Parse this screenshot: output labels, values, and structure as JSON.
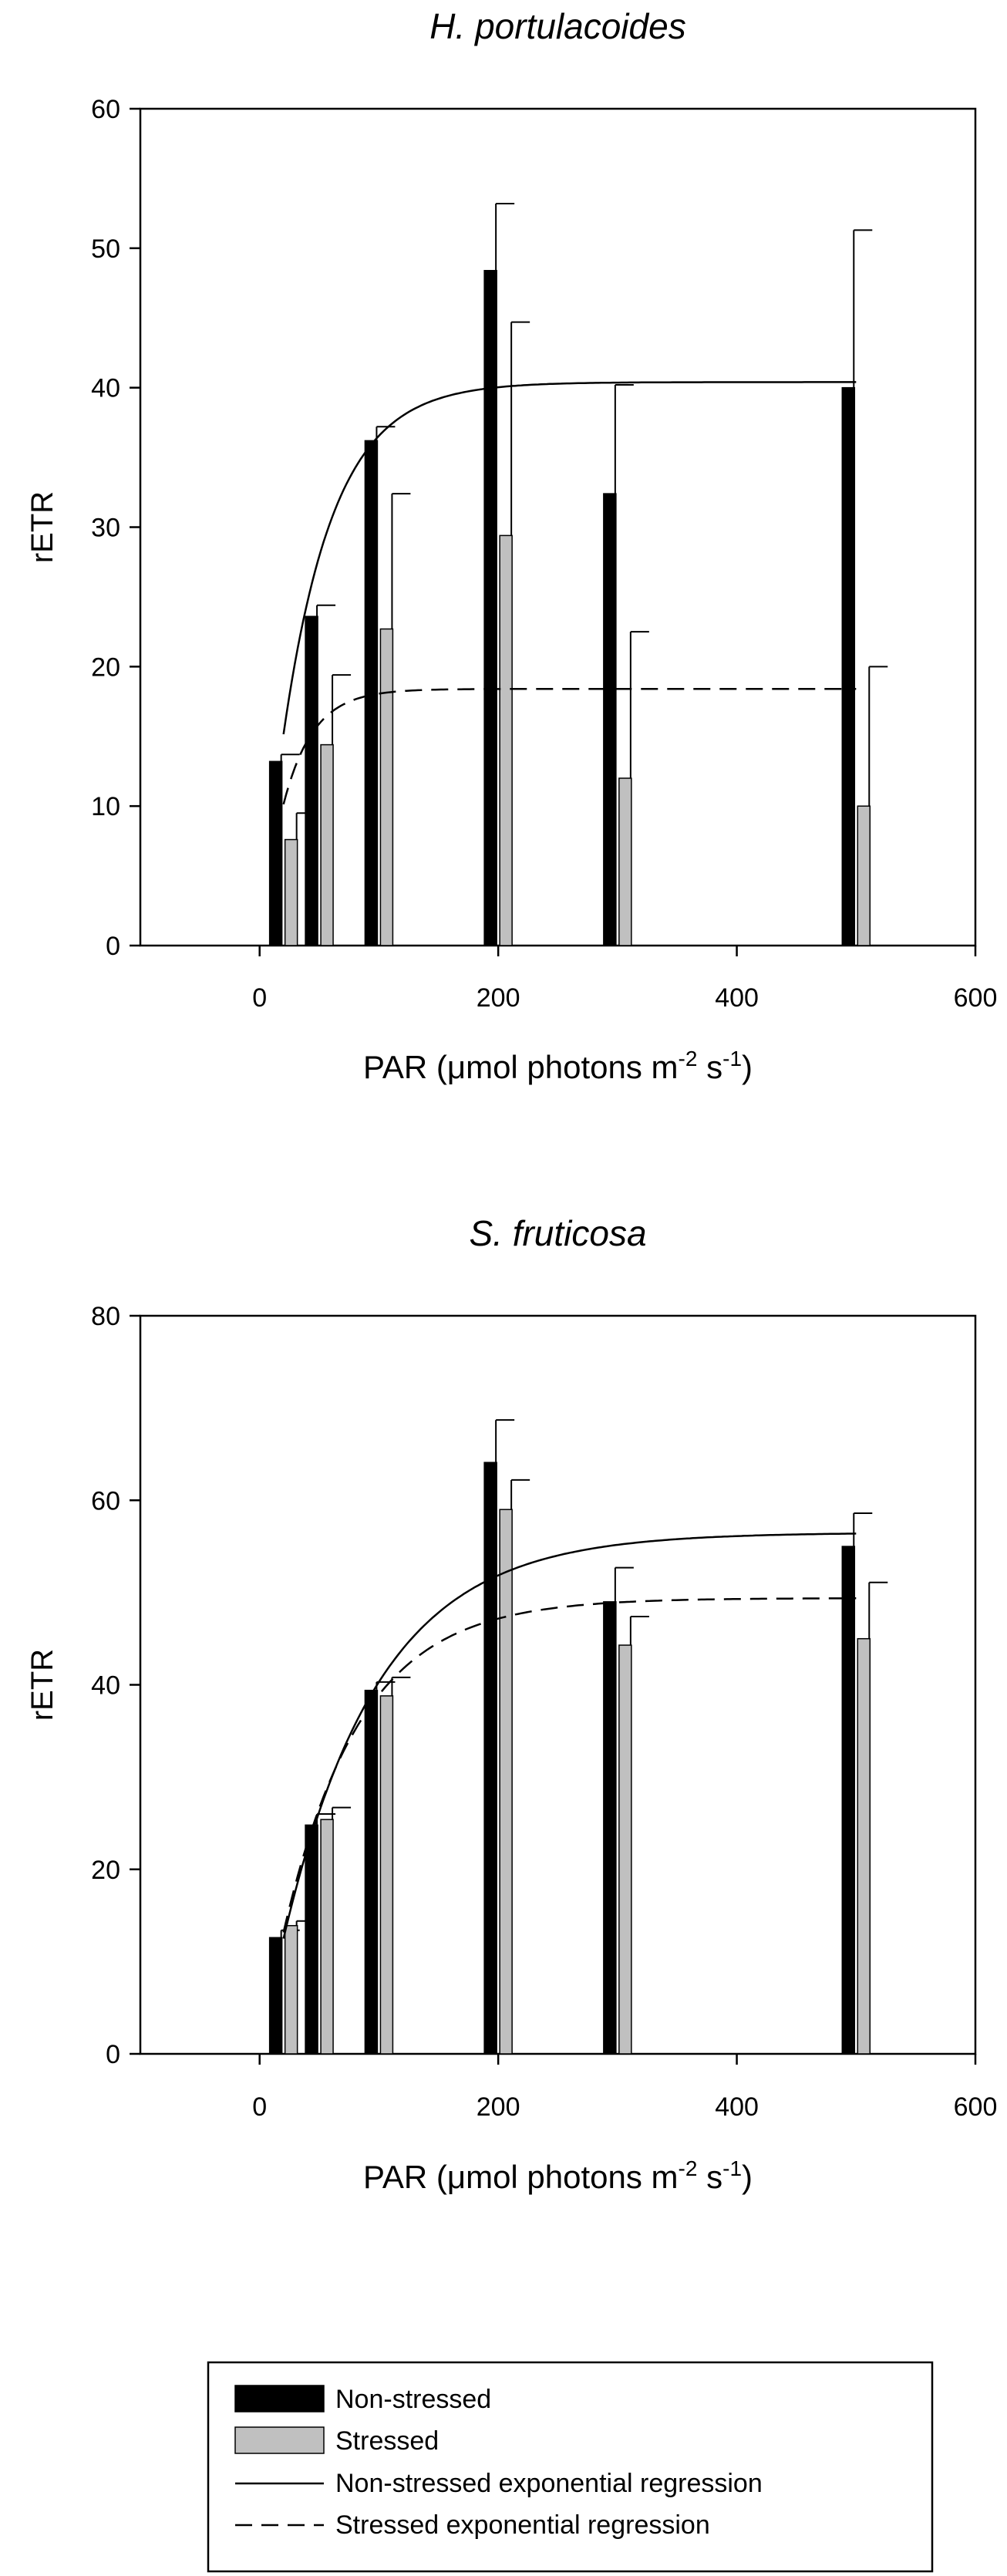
{
  "chart_data": [
    {
      "type": "bar",
      "title": "H. portulacoides",
      "xlabel": "PAR (μmol photons m-2 s-1)",
      "xlabel_parts": {
        "main": "PAR (",
        "mu": "μ",
        "mid": "mol photons m",
        "sup1": "-2",
        "mid2": " s",
        "sup2": "-1",
        "end": ")"
      },
      "ylabel": "rETR",
      "xlim": [
        -100,
        600
      ],
      "ylim": [
        0,
        60
      ],
      "xticks": [
        0,
        200,
        400,
        600
      ],
      "yticks": [
        0,
        10,
        20,
        30,
        40,
        50,
        60
      ],
      "x": [
        20,
        50,
        100,
        200,
        300,
        500
      ],
      "series": [
        {
          "name": "Non-stressed",
          "values": [
            13.2,
            23.6,
            36.2,
            48.4,
            32.4,
            40.0
          ],
          "errors": [
            0.5,
            0.8,
            1.0,
            4.8,
            7.8,
            11.3
          ],
          "color": "#000000"
        },
        {
          "name": "Stressed",
          "values": [
            7.6,
            14.4,
            22.7,
            29.4,
            12.0,
            10.0
          ],
          "errors": [
            1.9,
            5.0,
            9.7,
            15.3,
            10.5,
            10.0
          ],
          "color": "#c0c0c0"
        }
      ],
      "curves": [
        {
          "name": "Non-stressed exponential regression",
          "asymptote": 40.4,
          "rate": 0.0235,
          "style": "solid"
        },
        {
          "name": "Stressed exponential regression",
          "asymptote": 18.4,
          "rate": 0.04,
          "style": "dashed"
        }
      ],
      "grid": false,
      "legend": "bottom"
    },
    {
      "type": "bar",
      "title": "S. fruticosa",
      "xlabel": "PAR (μmol photons m-2 s-1)",
      "xlabel_parts": {
        "main": "PAR (",
        "mu": "μ",
        "mid": "mol photons m",
        "sup1": "-2",
        "mid2": " s",
        "sup2": "-1",
        "end": ")"
      },
      "ylabel": "rETR",
      "xlim": [
        -100,
        600
      ],
      "ylim": [
        0,
        80
      ],
      "xticks": [
        0,
        200,
        400,
        600
      ],
      "yticks": [
        0,
        20,
        40,
        60,
        80
      ],
      "x": [
        20,
        50,
        100,
        200,
        300,
        500
      ],
      "series": [
        {
          "name": "Non-stressed",
          "values": [
            12.6,
            24.8,
            39.4,
            64.1,
            49.0,
            55.0
          ],
          "errors": [
            0.8,
            1.2,
            0.9,
            4.6,
            3.7,
            3.6
          ],
          "color": "#000000"
        },
        {
          "name": "Stressed",
          "values": [
            13.9,
            25.4,
            38.8,
            59.0,
            44.3,
            45.0
          ],
          "errors": [
            0.5,
            1.3,
            2.0,
            3.2,
            3.1,
            6.1
          ],
          "color": "#c0c0c0"
        }
      ],
      "curves": [
        {
          "name": "Non-stressed exponential regression",
          "asymptote": 56.5,
          "rate": 0.0125,
          "style": "solid"
        },
        {
          "name": "Stressed exponential regression",
          "asymptote": 49.4,
          "rate": 0.0155,
          "style": "dashed"
        }
      ],
      "grid": false,
      "legend": "bottom"
    }
  ],
  "legend": {
    "items": [
      {
        "label": "Non-stressed",
        "kind": "bar",
        "color": "#000000"
      },
      {
        "label": "Stressed",
        "kind": "bar",
        "color": "#c0c0c0"
      },
      {
        "label": "Non-stressed exponential regression",
        "kind": "line",
        "style": "solid"
      },
      {
        "label": "Stressed exponential regression",
        "kind": "line",
        "style": "dashed"
      }
    ]
  }
}
